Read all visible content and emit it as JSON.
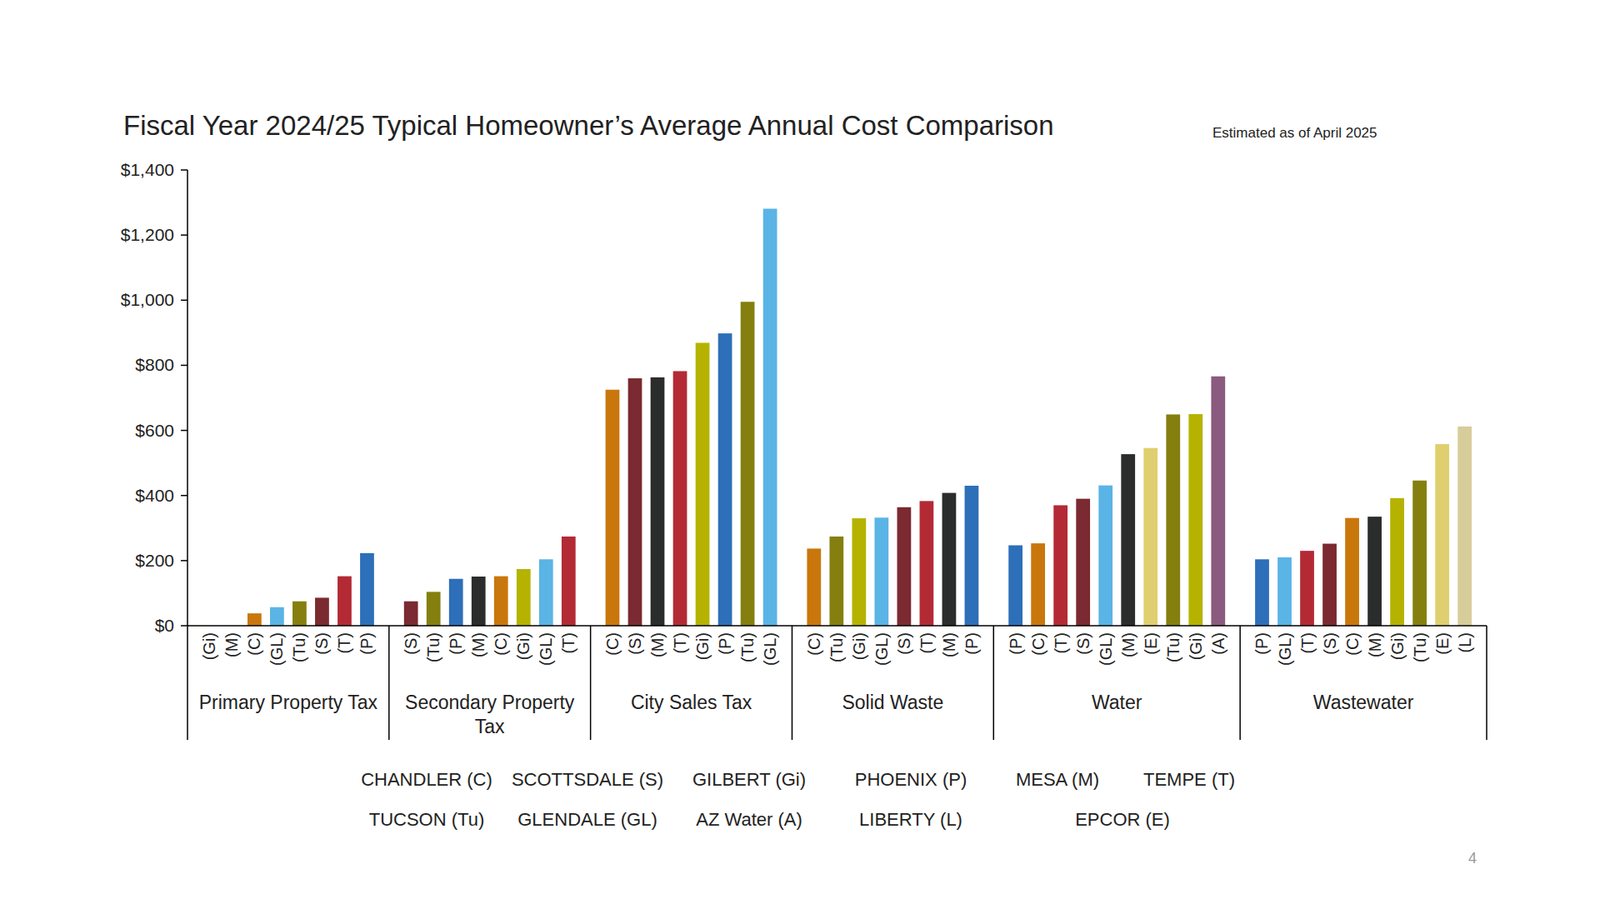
{
  "chart_data": {
    "type": "bar",
    "title": "Fiscal Year 2024/25 Typical Homeowner’s Average Annual Cost Comparison",
    "subtitle": "Estimated as of April 2025",
    "ylim": [
      0,
      1400
    ],
    "yticks": [
      {
        "value": 0,
        "label": "$0"
      },
      {
        "value": 200,
        "label": "$200"
      },
      {
        "value": 400,
        "label": "$400"
      },
      {
        "value": 600,
        "label": "$600"
      },
      {
        "value": 800,
        "label": "$800"
      },
      {
        "value": 1000,
        "label": "$1,000"
      },
      {
        "value": 1200,
        "label": "$1,200"
      },
      {
        "value": 1400,
        "label": "$1,400"
      }
    ],
    "grid": false,
    "groups": [
      {
        "name": "Primary Property Tax",
        "categories": [
          "(Gi)",
          "(M)",
          "(C)",
          "(GL)",
          "(Tu)",
          "(S)",
          "(T)",
          "(P)"
        ],
        "values": [
          0,
          0,
          38,
          57,
          75,
          86,
          152,
          223
        ],
        "colors": [
          "#b5b300",
          "#2b2d2c",
          "#c9770c",
          "#5ab4e5",
          "#857f10",
          "#7a2a30",
          "#b32a35",
          "#2d6fb8"
        ]
      },
      {
        "name": "Secondary Property Tax",
        "categories": [
          "(S)",
          "(Tu)",
          "(P)",
          "(M)",
          "(C)",
          "(Gi)",
          "(GL)",
          "(T)"
        ],
        "values": [
          75,
          104,
          144,
          151,
          152,
          174,
          204,
          274
        ],
        "colors": [
          "#7a2a30",
          "#857f10",
          "#2d6fb8",
          "#2b2d2c",
          "#c9770c",
          "#b5b300",
          "#5ab4e5",
          "#b32a35"
        ]
      },
      {
        "name": "City Sales Tax",
        "categories": [
          "(C)",
          "(S)",
          "(M)",
          "(T)",
          "(Gi)",
          "(P)",
          "(Tu)",
          "(GL)"
        ],
        "values": [
          725,
          760,
          763,
          782,
          869,
          898,
          995,
          1281
        ],
        "colors": [
          "#c9770c",
          "#7a2a30",
          "#2b2d2c",
          "#b32a35",
          "#b5b300",
          "#2d6fb8",
          "#857f10",
          "#5ab4e5"
        ]
      },
      {
        "name": "Solid Waste",
        "categories": [
          "(C)",
          "(Tu)",
          "(Gi)",
          "(GL)",
          "(S)",
          "(T)",
          "(M)",
          "(P)"
        ],
        "values": [
          237,
          274,
          330,
          332,
          364,
          383,
          408,
          430
        ],
        "colors": [
          "#c9770c",
          "#857f10",
          "#b5b300",
          "#5ab4e5",
          "#7a2a30",
          "#b32a35",
          "#2b2d2c",
          "#2d6fb8"
        ]
      },
      {
        "name": "Water",
        "categories": [
          "(P)",
          "(C)",
          "(T)",
          "(S)",
          "(GL)",
          "(M)",
          "(E)",
          "(Tu)",
          "(Gi)",
          "(A)"
        ],
        "values": [
          247,
          253,
          370,
          390,
          431,
          527,
          546,
          649,
          650,
          766
        ],
        "colors": [
          "#2d6fb8",
          "#c9770c",
          "#b32a35",
          "#7a2a30",
          "#5ab4e5",
          "#2b2d2c",
          "#e0cf6e",
          "#857f10",
          "#b5b300",
          "#8a5a7f"
        ]
      },
      {
        "name": "Wastewater",
        "categories": [
          "(P)",
          "(GL)",
          "(T)",
          "(S)",
          "(C)",
          "(M)",
          "(Gi)",
          "(Tu)",
          "(E)",
          "(L)"
        ],
        "values": [
          204,
          210,
          230,
          252,
          331,
          335,
          392,
          446,
          558,
          612
        ],
        "colors": [
          "#2d6fb8",
          "#5ab4e5",
          "#b32a35",
          "#7a2a30",
          "#c9770c",
          "#2b2d2c",
          "#b5b300",
          "#857f10",
          "#e0cf6e",
          "#d6cd9a"
        ]
      }
    ],
    "legend_rows": [
      [
        "CHANDLER (C)",
        "SCOTTSDALE (S)",
        "GILBERT (Gi)",
        "PHOENIX (P)",
        "MESA (M)",
        "TEMPE (T)"
      ],
      [
        "TUCSON (Tu)",
        "GLENDALE (GL)",
        "AZ Water (A)",
        "LIBERTY (L)",
        "EPCOR (E)"
      ]
    ],
    "annotations": [
      "4"
    ]
  }
}
